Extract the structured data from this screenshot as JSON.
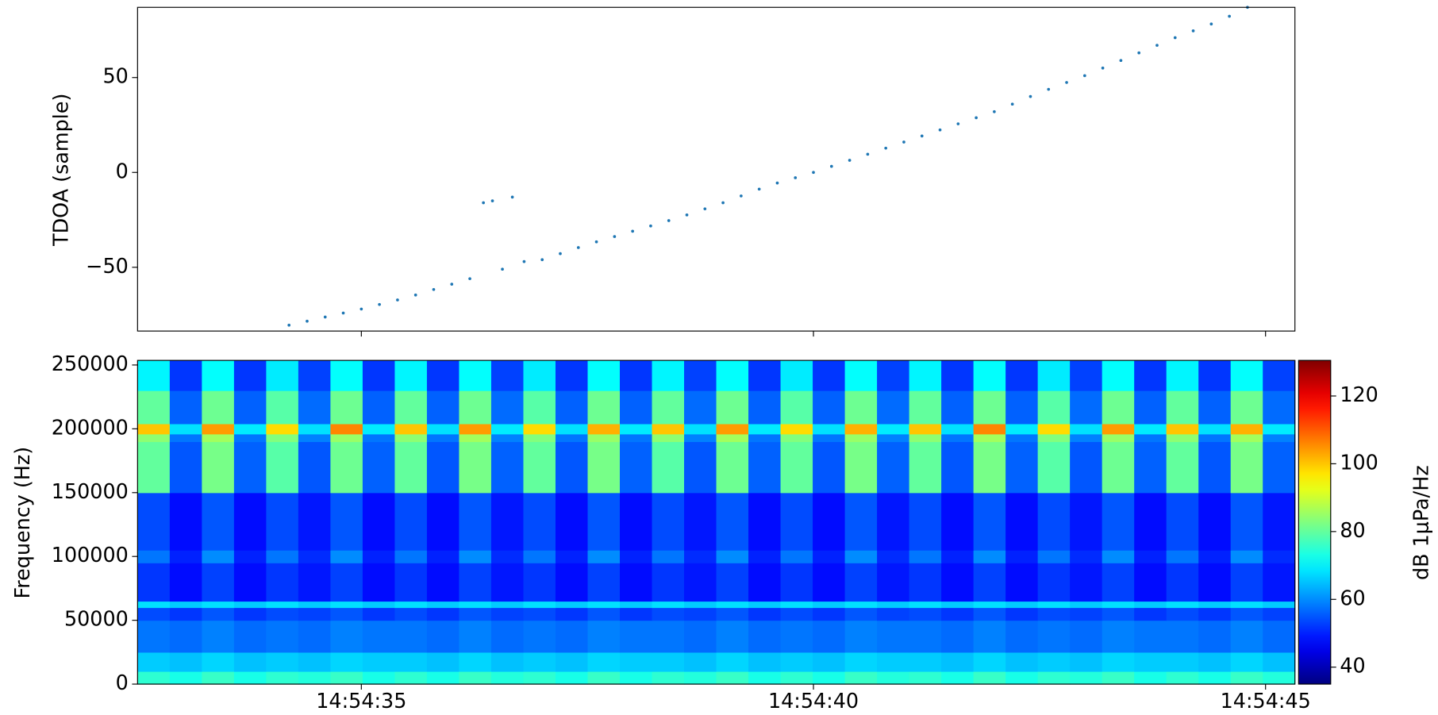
{
  "chart_data": [
    {
      "type": "scatter",
      "ylabel": "TDOA (sample)",
      "color": "#1f77b4",
      "x": [
        34.2,
        34.4,
        34.6,
        34.8,
        35.0,
        35.2,
        35.4,
        35.6,
        35.8,
        36.0,
        36.2,
        36.35,
        36.45,
        36.56,
        36.67,
        36.8,
        37.0,
        37.2,
        37.4,
        37.6,
        37.8,
        38.0,
        38.2,
        38.4,
        38.6,
        38.8,
        39.0,
        39.2,
        39.4,
        39.6,
        39.8,
        40.0,
        40.2,
        40.4,
        40.6,
        40.8,
        41.0,
        41.2,
        41.4,
        41.6,
        41.8,
        42.0,
        42.2,
        42.4,
        42.6,
        42.8,
        43.0,
        43.2,
        43.4,
        43.6,
        43.8,
        44.0,
        44.2,
        44.4,
        44.6,
        44.8
      ],
      "values": [
        -80.5,
        -78.4,
        -76.2,
        -74.1,
        -72,
        -69.6,
        -67.2,
        -64.6,
        -61.7,
        -58.9,
        -56.0,
        -16,
        -15,
        -51,
        -13,
        -47,
        -46,
        -42.8,
        -39.6,
        -36.6,
        -33.8,
        -31,
        -28.2,
        -25.4,
        -22.4,
        -19.2,
        -16,
        -12.4,
        -8.8,
        -5.6,
        -2.8,
        0,
        3.2,
        6.4,
        9.6,
        12.8,
        16,
        19.2,
        22.4,
        25.6,
        28.8,
        32,
        36,
        40,
        43.8,
        47.4,
        51,
        55,
        59,
        63,
        67,
        71,
        74.6,
        78.2,
        82.3,
        87
      ],
      "xlim": [
        32.525,
        45.325
      ],
      "xticks": [
        35,
        40,
        45
      ],
      "ylim": [
        -83.6,
        87
      ],
      "yticks": [
        {
          "value": -50,
          "label": "−50"
        },
        0,
        50
      ]
    },
    {
      "type": "heatmap",
      "ylabel": "Frequency (Hz)",
      "colormap": "jet",
      "xlim": [
        32.525,
        45.325
      ],
      "xticks": [
        {
          "value": 35,
          "label": "14:54:35"
        },
        {
          "value": 40,
          "label": "14:54:40"
        },
        {
          "value": 45,
          "label": "14:54:45"
        }
      ],
      "ylim": [
        0,
        253600
      ],
      "yticks": [
        0,
        50000,
        100000,
        150000,
        200000,
        250000
      ],
      "y_edges": [
        0,
        10000,
        25000,
        50000,
        60000,
        65000,
        95000,
        105000,
        150000,
        190000,
        196000,
        204000,
        230000,
        253600
      ],
      "z": [
        [
          75,
          73,
          76,
          73,
          75,
          74,
          76,
          73,
          75,
          73,
          76,
          74,
          75,
          73,
          76,
          73,
          75,
          74,
          76,
          73,
          75,
          73,
          76,
          74,
          75,
          73,
          76,
          73,
          75,
          74,
          76,
          73,
          75,
          73,
          76,
          74
        ],
        [
          66,
          65,
          67,
          65,
          66,
          65,
          67,
          66,
          66,
          65,
          67,
          65,
          66,
          65,
          67,
          66,
          66,
          65,
          67,
          65,
          66,
          65,
          67,
          66,
          66,
          65,
          67,
          65,
          66,
          65,
          67,
          66,
          66,
          65,
          67,
          65
        ],
        [
          58,
          57,
          59,
          57,
          58,
          57,
          59,
          58,
          58,
          57,
          59,
          57,
          58,
          57,
          59,
          58,
          58,
          57,
          59,
          57,
          58,
          57,
          59,
          58,
          58,
          57,
          59,
          57,
          58,
          57,
          59,
          58,
          58,
          57,
          59,
          57
        ],
        [
          54,
          52,
          55,
          52,
          54,
          53,
          55,
          52,
          54,
          52,
          55,
          53,
          54,
          52,
          55,
          52,
          54,
          53,
          55,
          52,
          54,
          52,
          55,
          53,
          54,
          52,
          55,
          52,
          54,
          53,
          55,
          52,
          54,
          52,
          55,
          53
        ],
        [
          68,
          66,
          68,
          66,
          68,
          66,
          68,
          66,
          68,
          66,
          68,
          66,
          68,
          66,
          68,
          66,
          68,
          66,
          68,
          66,
          68,
          66,
          68,
          66,
          68,
          66,
          68,
          66,
          68,
          66,
          68,
          66,
          68,
          66,
          68,
          66
        ],
        [
          52,
          48,
          53,
          48,
          52,
          49,
          53,
          48,
          52,
          48,
          53,
          49,
          52,
          48,
          53,
          48,
          52,
          49,
          53,
          48,
          52,
          48,
          53,
          49,
          52,
          48,
          53,
          48,
          52,
          49,
          53,
          48,
          52,
          48,
          53,
          49
        ],
        [
          58,
          50,
          60,
          50,
          58,
          51,
          60,
          50,
          58,
          50,
          60,
          51,
          58,
          50,
          60,
          50,
          58,
          51,
          60,
          50,
          58,
          50,
          60,
          51,
          58,
          50,
          60,
          50,
          58,
          51,
          60,
          50,
          58,
          50,
          60,
          51
        ],
        [
          54,
          48,
          55,
          48,
          54,
          49,
          55,
          48,
          54,
          48,
          55,
          49,
          54,
          48,
          55,
          48,
          54,
          49,
          55,
          48,
          54,
          48,
          55,
          49,
          54,
          48,
          55,
          48,
          54,
          49,
          55,
          48,
          54,
          48,
          55,
          49
        ],
        [
          80,
          55,
          82,
          56,
          79,
          55,
          81,
          56,
          80,
          55,
          82,
          56,
          80,
          55,
          82,
          56,
          79,
          55,
          81,
          56,
          80,
          55,
          82,
          56,
          80,
          55,
          82,
          56,
          79,
          55,
          81,
          56,
          80,
          55,
          82,
          56
        ],
        [
          84,
          58,
          86,
          58,
          83,
          59,
          85,
          58,
          84,
          58,
          86,
          59,
          83,
          58,
          85,
          58,
          84,
          59,
          86,
          58,
          83,
          58,
          85,
          59,
          84,
          58,
          86,
          58,
          83,
          59,
          85,
          58,
          84,
          58,
          86,
          59
        ],
        [
          100,
          68,
          104,
          69,
          98,
          68,
          106,
          69,
          100,
          68,
          104,
          69,
          98,
          68,
          102,
          69,
          100,
          68,
          104,
          69,
          98,
          68,
          102,
          69,
          100,
          68,
          106,
          69,
          98,
          68,
          104,
          69,
          100,
          68,
          102,
          69
        ],
        [
          80,
          56,
          81,
          56,
          79,
          57,
          81,
          56,
          80,
          56,
          81,
          57,
          79,
          56,
          81,
          56,
          80,
          57,
          81,
          56,
          79,
          56,
          81,
          57,
          80,
          56,
          81,
          56,
          79,
          57,
          81,
          56,
          80,
          56,
          81,
          57
        ],
        [
          70,
          52,
          71,
          52,
          69,
          53,
          71,
          52,
          70,
          52,
          71,
          53,
          69,
          52,
          71,
          52,
          70,
          53,
          71,
          52,
          69,
          52,
          71,
          53,
          70,
          52,
          71,
          52,
          69,
          53,
          71,
          52,
          70,
          52,
          71,
          53
        ]
      ],
      "colorbar": {
        "label": "dB 1μPa/Hz",
        "clim": [
          35,
          130.5
        ],
        "ticks": [
          40,
          60,
          80,
          100,
          120
        ]
      }
    }
  ]
}
